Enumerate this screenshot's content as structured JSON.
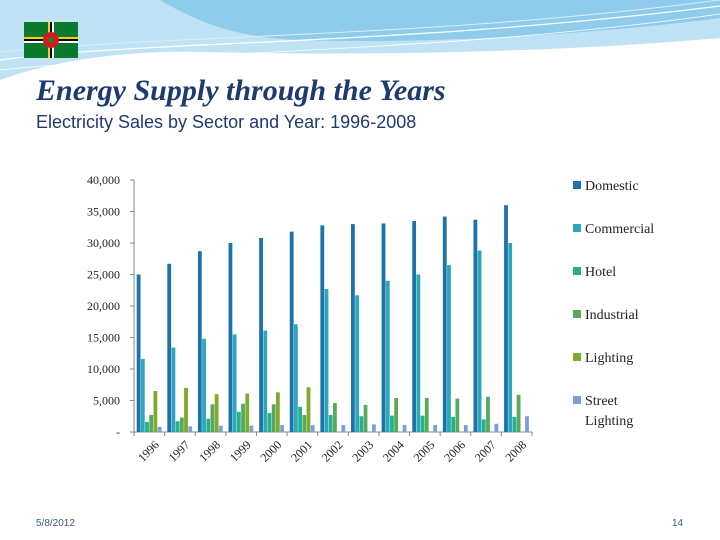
{
  "slide": {
    "title": "Energy Supply through the Years",
    "subtitle": "Electricity Sales by Sector and Year: 1996-2008",
    "date": "5/8/2012",
    "page_number": "14"
  },
  "colors": {
    "title": "#1f3a6e",
    "background_swoosh": "#7ec3e6"
  },
  "chart_data": {
    "type": "bar",
    "categories": [
      "1996",
      "1997",
      "1998",
      "1999",
      "2000",
      "2001",
      "2002",
      "2003",
      "2004",
      "2005",
      "2006",
      "2007",
      "2008"
    ],
    "series": [
      {
        "name": "Domestic",
        "color": "#1c72ad",
        "values": [
          25000,
          26700,
          28700,
          30000,
          30800,
          31800,
          32800,
          33000,
          33100,
          33500,
          34200,
          33700,
          36000
        ]
      },
      {
        "name": "Commercial",
        "color": "#2aa8b8",
        "values": [
          11600,
          13400,
          14800,
          15500,
          16100,
          17100,
          22700,
          21700,
          24000,
          25000,
          26500,
          28800,
          30000
        ]
      },
      {
        "name": "Hotel",
        "color": "#27b08f",
        "values": [
          1600,
          1700,
          2100,
          3200,
          3000,
          4000,
          2700,
          2500,
          2600,
          2600,
          2400,
          2000,
          2400
        ]
      },
      {
        "name": "Industrial",
        "color": "#5aa85a",
        "values": [
          2700,
          2300,
          4400,
          4500,
          4400,
          2700,
          4600,
          4300,
          5400,
          5400,
          5300,
          5600,
          5900
        ]
      },
      {
        "name": "Lighting",
        "color": "#7eaa2e",
        "values": [
          6500,
          7000,
          6000,
          6100,
          6300,
          7100,
          0,
          0,
          0,
          0,
          0,
          0,
          0
        ]
      },
      {
        "name": "Street Lighting",
        "color": "#7f9ed4",
        "values": [
          800,
          900,
          1000,
          1000,
          1100,
          1100,
          1100,
          1200,
          1100,
          1100,
          1100,
          1300,
          2500
        ]
      }
    ],
    "y_ticks": [
      "-",
      "5,000",
      "10,000",
      "15,000",
      "20,000",
      "25,000",
      "30,000",
      "35,000",
      "40,000"
    ],
    "ylim": [
      0,
      40000
    ],
    "legend_position": "right",
    "grid": false
  }
}
